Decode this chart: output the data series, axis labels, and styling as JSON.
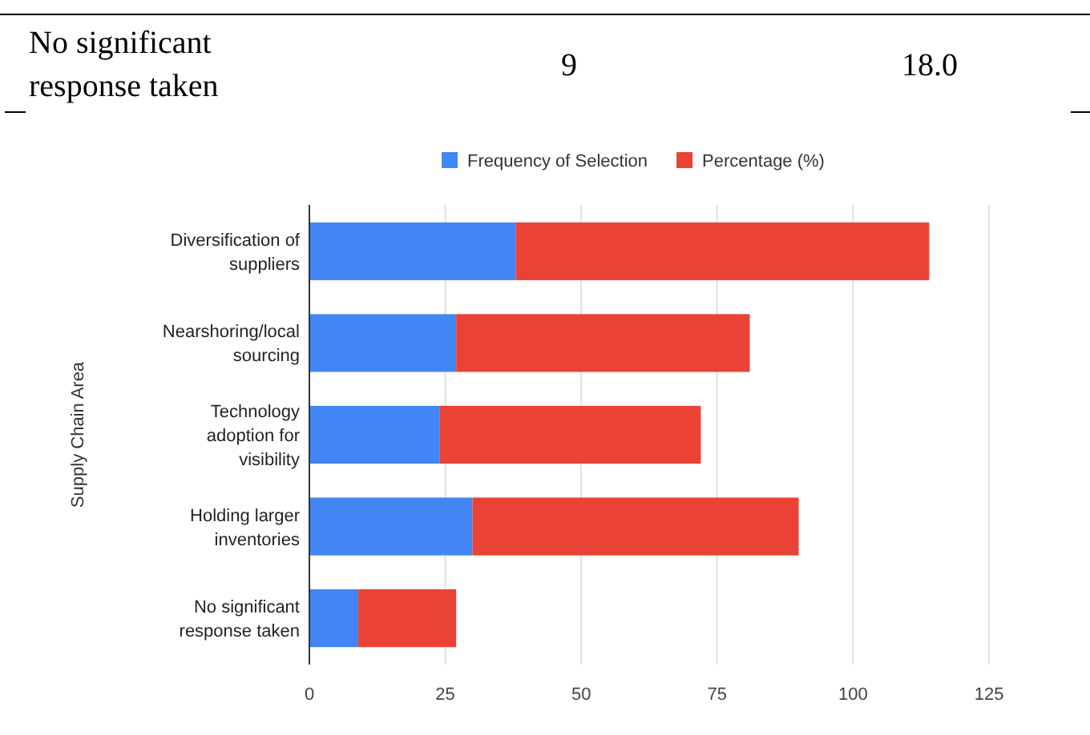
{
  "chart_data": {
    "type": "bar",
    "orientation": "horizontal",
    "stacked": true,
    "ylabel": "Supply Chain Area",
    "categories": [
      "Diversification of suppliers",
      "Nearshoring/local sourcing",
      "Technology adoption for visibility",
      "Holding larger inventories",
      "No significant response taken"
    ],
    "series": [
      {
        "name": "Frequency of Selection",
        "color": "#4285f4",
        "values": [
          38,
          27,
          24,
          30,
          9
        ]
      },
      {
        "name": "Percentage (%)",
        "color": "#ea4335",
        "values": [
          76,
          54,
          48,
          60,
          18
        ]
      }
    ],
    "xlim": [
      0,
      125
    ],
    "xticks": [
      0,
      25,
      50,
      75,
      100,
      125
    ],
    "grid": "x",
    "legend": "top",
    "annotations": [
      "No significant response taken",
      "9",
      "18.0"
    ]
  }
}
